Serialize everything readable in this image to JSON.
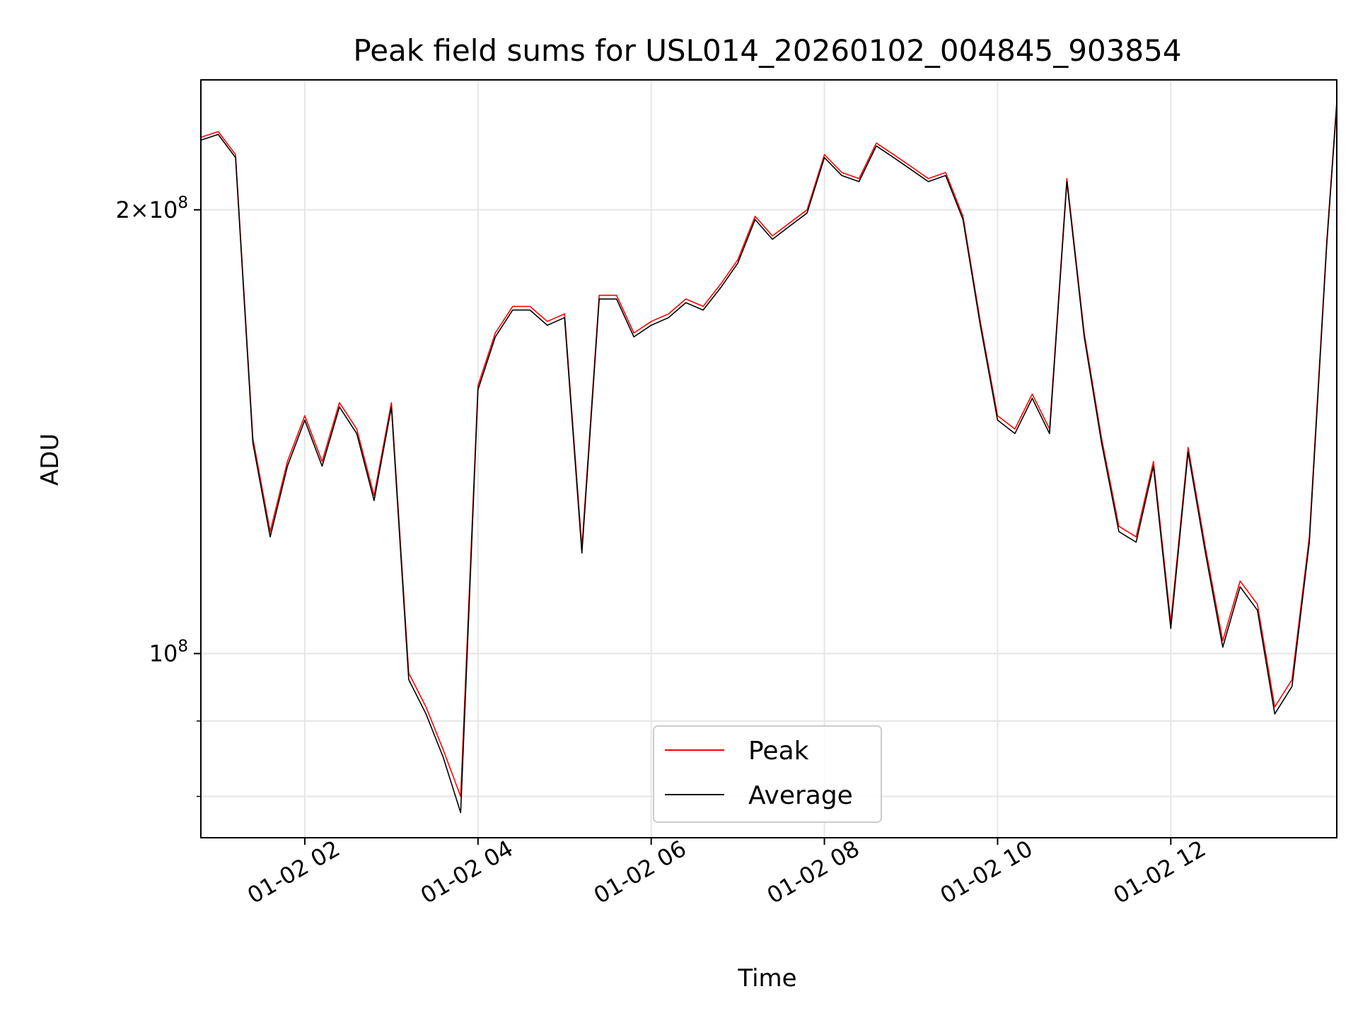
{
  "chart_data": {
    "type": "line",
    "title": "Peak field sums for USL014_20260102_004845_903854",
    "xlabel": "Time",
    "ylabel": "ADU",
    "x_scale": "time",
    "y_scale": "log",
    "xlim": [
      "01-02 00:48",
      "01-02 13:55"
    ],
    "ylim": [
      75000000,
      245000000
    ],
    "x_ticks": [
      "01-02 02",
      "01-02 04",
      "01-02 06",
      "01-02 08",
      "01-02 10",
      "01-02 12"
    ],
    "y_major_ticks": [
      {
        "value": 100000000,
        "base": "10",
        "exp": "8",
        "mult": ""
      },
      {
        "value": 200000000,
        "base": "10",
        "exp": "8",
        "mult": "2×"
      }
    ],
    "y_minor_ticks": [
      80000000,
      90000000
    ],
    "grid": true,
    "legend_position": "lower center",
    "x": [
      "01-02 00:48",
      "01-02 01:00",
      "01-02 01:12",
      "01-02 01:24",
      "01-02 01:36",
      "01-02 01:48",
      "01-02 02:00",
      "01-02 02:12",
      "01-02 02:24",
      "01-02 02:36",
      "01-02 02:48",
      "01-02 03:00",
      "01-02 03:12",
      "01-02 03:24",
      "01-02 03:36",
      "01-02 03:48",
      "01-02 04:00",
      "01-02 04:12",
      "01-02 04:24",
      "01-02 04:36",
      "01-02 04:48",
      "01-02 05:00",
      "01-02 05:12",
      "01-02 05:24",
      "01-02 05:36",
      "01-02 05:48",
      "01-02 06:00",
      "01-02 06:12",
      "01-02 06:24",
      "01-02 06:36",
      "01-02 06:48",
      "01-02 07:00",
      "01-02 07:12",
      "01-02 07:24",
      "01-02 07:36",
      "01-02 07:48",
      "01-02 08:00",
      "01-02 08:12",
      "01-02 08:24",
      "01-02 08:36",
      "01-02 08:48",
      "01-02 09:00",
      "01-02 09:12",
      "01-02 09:24",
      "01-02 09:36",
      "01-02 09:48",
      "01-02 10:00",
      "01-02 10:12",
      "01-02 10:24",
      "01-02 10:36",
      "01-02 10:48",
      "01-02 11:00",
      "01-02 11:12",
      "01-02 11:24",
      "01-02 11:36",
      "01-02 11:48",
      "01-02 12:00",
      "01-02 12:12",
      "01-02 12:24",
      "01-02 12:36",
      "01-02 12:48",
      "01-02 13:00",
      "01-02 13:12",
      "01-02 13:24",
      "01-02 13:36",
      "01-02 13:48",
      "01-02 13:55"
    ],
    "series": [
      {
        "name": "Peak",
        "color": "#ff0000",
        "values": [
          224,
          226,
          218,
          140,
          121,
          135,
          145,
          135,
          148,
          142,
          128,
          148,
          97,
          92,
          86,
          80,
          152,
          165,
          172,
          172,
          168,
          170,
          118,
          175,
          175,
          165,
          168,
          170,
          174,
          172,
          178,
          185,
          198,
          192,
          196,
          200,
          218,
          212,
          210,
          222,
          218,
          214,
          210,
          212,
          198,
          168,
          145,
          142,
          150,
          142,
          210,
          165,
          140,
          122,
          120,
          135,
          105,
          138,
          118,
          102,
          112,
          108,
          92,
          96,
          120,
          190,
          237
        ]
      },
      {
        "name": "Average",
        "color": "#000000",
        "values": [
          223,
          225,
          217,
          139,
          120,
          134,
          144,
          134,
          147,
          141,
          127,
          147,
          96,
          91,
          85,
          78,
          151,
          164,
          171,
          171,
          167,
          169,
          117,
          174,
          174,
          164,
          167,
          169,
          173,
          171,
          177,
          184,
          197,
          191,
          195,
          199,
          217,
          211,
          209,
          221,
          217,
          213,
          209,
          211,
          197,
          167,
          144,
          141,
          149,
          141,
          209,
          164,
          139,
          121,
          119,
          134,
          104,
          137,
          117,
          101,
          111,
          107,
          91,
          95,
          119,
          189,
          236
        ]
      }
    ]
  }
}
